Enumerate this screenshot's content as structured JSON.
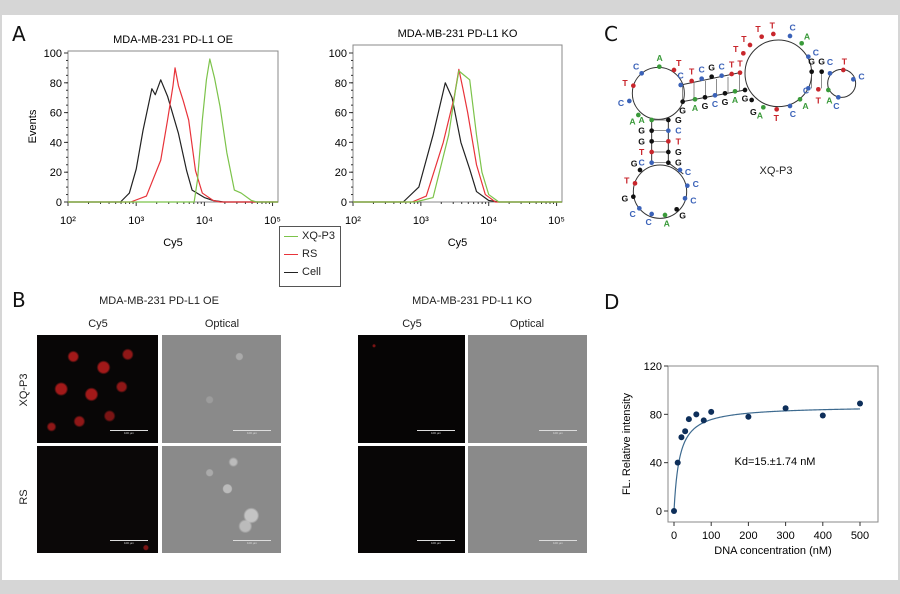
{
  "panels": {
    "a": "A",
    "b": "B",
    "c": "C",
    "d": "D"
  },
  "legend": [
    {
      "label": "XQ-P3",
      "color": "#7cc34a"
    },
    {
      "label": "RS",
      "color": "#e8333a"
    },
    {
      "label": "Cell",
      "color": "#222222"
    }
  ],
  "panel_b": {
    "groups": [
      {
        "title": "MDA-MB-231 PD-L1 OE",
        "columns": [
          "Cy5",
          "Optical"
        ]
      },
      {
        "title": "MDA-MB-231 PD-L1 KO",
        "columns": [
          "Cy5",
          "Optical"
        ]
      }
    ],
    "rows": [
      "XQ-P3",
      "RS"
    ],
    "scale_bar": "100 µm"
  },
  "panel_c": {
    "label": "XQ-P3",
    "nucleotides": [
      "A",
      "C",
      "T",
      "C",
      "A",
      "T",
      "C",
      "T",
      "C",
      "G",
      "C",
      "T",
      "T",
      "G",
      "A",
      "G",
      "C",
      "G",
      "A",
      "G",
      "T",
      "T",
      "T",
      "T",
      "C",
      "A",
      "C",
      "G",
      "G",
      "G",
      "A",
      "T",
      "C",
      "A",
      "T",
      "C",
      "T",
      "C",
      "C",
      "A",
      "C",
      "A",
      "G",
      "G",
      "T",
      "C",
      "G",
      "C",
      "T",
      "G",
      "G",
      "C",
      "G",
      "T",
      "G",
      "C",
      "C",
      "A",
      "G",
      "C",
      "C",
      "A"
    ],
    "colors": {
      "A": "#3a9a3a",
      "T": "#c8262c",
      "C": "#3b62b8",
      "G": "#111111"
    }
  },
  "chart_data": [
    {
      "type": "line",
      "title": "MDA-MB-231 PD-L1 OE",
      "xlabel": "Cy5",
      "ylabel": "Events",
      "xscale": "log",
      "xlim_log10": [
        2,
        5.08
      ],
      "ylim": [
        0,
        100
      ],
      "xticks": [
        {
          "v": 2,
          "label": "10²"
        },
        {
          "v": 3,
          "label": "10³"
        },
        {
          "v": 4,
          "label": "10⁴"
        },
        {
          "v": 5,
          "label": "10⁵"
        }
      ],
      "yticks": [
        0,
        20,
        40,
        60,
        80,
        100
      ],
      "series": [
        {
          "name": "Cell",
          "color": "#222222",
          "log10x": [
            2.0,
            2.77,
            2.9,
            3.0,
            3.1,
            3.23,
            3.28,
            3.36,
            3.46,
            3.62,
            3.74,
            3.82,
            4.0,
            4.13,
            4.28,
            5.08
          ],
          "y": [
            0,
            0,
            6,
            22,
            48,
            76,
            72,
            82,
            71,
            46,
            21,
            8,
            3,
            1,
            0,
            0
          ]
        },
        {
          "name": "RS",
          "color": "#e8333a",
          "log10x": [
            2.0,
            2.92,
            3.15,
            3.36,
            3.46,
            3.54,
            3.57,
            3.62,
            3.69,
            3.77,
            3.87,
            3.97,
            4.13,
            4.23,
            5.08
          ],
          "y": [
            0,
            0,
            4,
            28,
            55,
            78,
            90,
            78,
            68,
            55,
            21,
            6,
            1,
            0,
            0
          ]
        },
        {
          "name": "XQ-P3",
          "color": "#7cc34a",
          "log10x": [
            2.0,
            3.85,
            3.9,
            3.97,
            4.03,
            4.08,
            4.15,
            4.23,
            4.33,
            4.44,
            4.54,
            4.69,
            4.77,
            5.08
          ],
          "y": [
            0,
            0,
            15,
            55,
            82,
            96,
            83,
            64,
            33,
            8,
            6,
            1,
            0,
            0
          ]
        }
      ]
    },
    {
      "type": "line",
      "title": "MDA-MB-231 PD-L1 KO",
      "xlabel": "Cy5",
      "ylabel": "",
      "xscale": "log",
      "xlim_log10": [
        2,
        5.08
      ],
      "ylim": [
        0,
        100
      ],
      "xticks": [
        {
          "v": 2,
          "label": "10²"
        },
        {
          "v": 3,
          "label": "10³"
        },
        {
          "v": 4,
          "label": "10⁴"
        },
        {
          "v": 5,
          "label": "10⁵"
        }
      ],
      "yticks": [
        0,
        20,
        40,
        60,
        80,
        100
      ],
      "series": [
        {
          "name": "Cell",
          "color": "#222222",
          "log10x": [
            2.0,
            2.74,
            2.97,
            3.18,
            3.36,
            3.46,
            3.59,
            3.72,
            3.82,
            4.0,
            4.15,
            5.08
          ],
          "y": [
            0,
            0,
            10,
            45,
            80,
            70,
            40,
            22,
            7,
            1,
            0,
            0
          ]
        },
        {
          "name": "RS",
          "color": "#e8333a",
          "log10x": [
            2.0,
            2.87,
            3.08,
            3.33,
            3.49,
            3.56,
            3.62,
            3.69,
            3.82,
            3.95,
            4.1,
            5.08
          ],
          "y": [
            0,
            0,
            4,
            40,
            70,
            89,
            76,
            60,
            25,
            5,
            0,
            0
          ]
        },
        {
          "name": "XQ-P3",
          "color": "#7cc34a",
          "log10x": [
            2.0,
            2.92,
            3.18,
            3.41,
            3.51,
            3.56,
            3.64,
            3.72,
            3.82,
            3.9,
            4.0,
            4.15,
            5.08
          ],
          "y": [
            0,
            0,
            3,
            45,
            75,
            88,
            85,
            82,
            45,
            20,
            5,
            0,
            0
          ]
        }
      ]
    },
    {
      "type": "scatter",
      "title": "",
      "xlabel": "DNA concentration (nM)",
      "ylabel": "FL. Relative intensity",
      "xlim": [
        0,
        500
      ],
      "ylim": [
        0,
        120
      ],
      "xticks": [
        0,
        100,
        200,
        300,
        400,
        500
      ],
      "yticks": [
        0,
        40,
        80,
        120
      ],
      "points": {
        "x": [
          0,
          10,
          20,
          30,
          40,
          60,
          80,
          100,
          200,
          300,
          400,
          500
        ],
        "y": [
          0,
          40,
          61,
          66,
          76,
          80,
          75,
          82,
          78,
          85,
          79,
          89
        ]
      },
      "fit": {
        "model": "one-site binding",
        "Bmax": 87,
        "Kd": 15,
        "color": "#3d6a8f"
      },
      "point_color": "#0e2f5a",
      "annotation": "Kd=15.±1.74 nM"
    }
  ]
}
